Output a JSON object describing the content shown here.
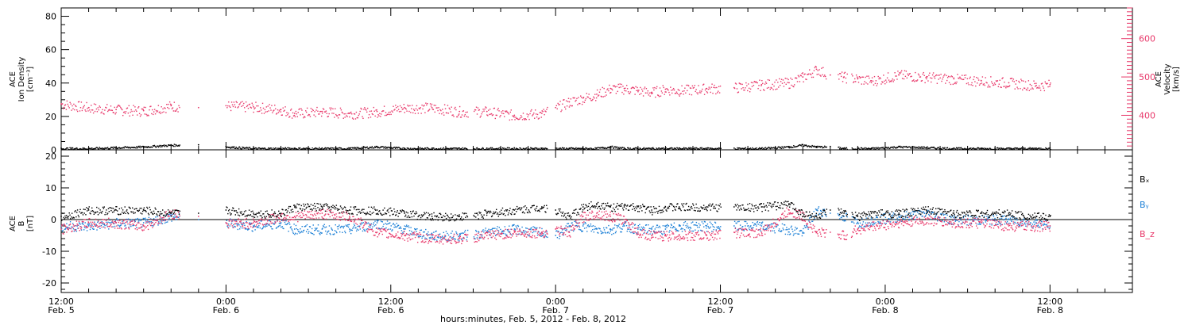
{
  "colors": {
    "velocity": "#e8386a",
    "density": "#000000",
    "bx": "#000000",
    "by": "#1a7fd6",
    "bz": "#e8386a",
    "axis": "#000000"
  },
  "xlabel": "hours:minutes, Feb.  5, 2012 - Feb.  8, 2012",
  "x_ticks": [
    {
      "hour": 0,
      "time": "12:00",
      "date": "Feb. 5"
    },
    {
      "hour": 12,
      "time": "0:00",
      "date": "Feb. 6"
    },
    {
      "hour": 24,
      "time": "12:00",
      "date": "Feb. 6"
    },
    {
      "hour": 36,
      "time": "0:00",
      "date": "Feb. 7"
    },
    {
      "hour": 48,
      "time": "12:00",
      "date": "Feb. 7"
    },
    {
      "hour": 60,
      "time": "0:00",
      "date": "Feb. 8"
    },
    {
      "hour": 72,
      "time": "12:00",
      "date": "Feb. 8"
    }
  ],
  "chart_data": [
    {
      "type": "scatter",
      "panel": "top",
      "xlim": [
        0,
        78
      ],
      "x_unit": "hours since Feb. 5 12:00",
      "ylabel_left": [
        "ACE",
        "Ion Density",
        "[cm⁻³]"
      ],
      "ylabel_right": [
        "ACE",
        "Velocity",
        "[km/s]"
      ],
      "ylim_left": [
        0,
        85
      ],
      "ylim_right": [
        310,
        680
      ],
      "left_ticks": [
        "0",
        "20",
        "40",
        "60",
        "80"
      ],
      "right_ticks": [
        "400",
        "500",
        "600"
      ],
      "series": [
        {
          "axis": "right",
          "x": [
            0,
            2,
            4,
            6,
            8,
            10,
            12,
            14,
            16,
            17,
            19,
            21,
            23,
            25,
            27,
            29,
            31,
            33,
            35,
            36,
            37,
            38,
            39,
            40,
            41,
            42,
            43,
            44,
            45,
            47,
            49,
            51,
            53,
            54,
            55,
            56,
            57,
            58,
            59,
            61,
            63,
            65,
            67,
            69,
            71,
            72
          ],
          "y": [
            430,
            420,
            415,
            412,
            425,
            420,
            425,
            422,
            415,
            405,
            410,
            405,
            410,
            420,
            420,
            410,
            410,
            400,
            405,
            420,
            435,
            445,
            455,
            470,
            470,
            465,
            460,
            468,
            465,
            470,
            472,
            480,
            485,
            500,
            520,
            505,
            500,
            495,
            490,
            505,
            500,
            495,
            490,
            485,
            478,
            480
          ]
        },
        {
          "axis": "left",
          "x": [
            0,
            2,
            4,
            6,
            8,
            10,
            12,
            14,
            16,
            17,
            19,
            21,
            23,
            25,
            27,
            29,
            31,
            33,
            35,
            36,
            37,
            38,
            39,
            40,
            41,
            42,
            43,
            44,
            45,
            47,
            49,
            51,
            53,
            54,
            55,
            56,
            57,
            58,
            59,
            61,
            63,
            65,
            67,
            69,
            71,
            72
          ],
          "y": [
            1,
            1,
            1.5,
            2,
            3,
            3,
            2,
            1,
            1,
            1,
            1,
            1,
            2,
            1,
            1,
            1,
            1,
            1,
            1,
            1,
            1,
            1,
            1,
            2,
            1,
            1,
            1,
            1,
            1,
            1,
            1,
            1,
            2,
            3,
            2,
            2,
            1,
            1,
            1,
            2,
            1.5,
            1,
            1,
            1,
            1,
            1
          ]
        }
      ]
    },
    {
      "type": "scatter",
      "panel": "bottom",
      "xlim": [
        0,
        78
      ],
      "x_unit": "hours since Feb. 5 12:00",
      "ylabel": [
        "ACE",
        "B",
        "[nT]"
      ],
      "ylim": [
        -23,
        22
      ],
      "y_ticks": [
        "-20",
        "-10",
        "0",
        "10",
        "20"
      ],
      "series": [
        {
          "name": "Bₓ",
          "x": [
            0,
            2,
            4,
            6,
            8,
            10,
            12,
            14,
            16,
            17,
            19,
            21,
            23,
            25,
            27,
            29,
            31,
            33,
            35,
            36,
            37,
            38,
            39,
            40,
            41,
            42,
            43,
            44,
            45,
            47,
            49,
            51,
            53,
            54,
            55,
            56,
            57,
            58,
            59,
            61,
            63,
            65,
            67,
            69,
            71,
            72
          ],
          "y": [
            1,
            3,
            3,
            3,
            2,
            2,
            3,
            2,
            2,
            4,
            4,
            3,
            3,
            2,
            1,
            1,
            2,
            3,
            4,
            3,
            1,
            4,
            5,
            4,
            4,
            4,
            3,
            4,
            4,
            4,
            4,
            4,
            5,
            2,
            1,
            3,
            2,
            1,
            2,
            2,
            3,
            2,
            2,
            2,
            1,
            1
          ]
        },
        {
          "name": "Bᵧ",
          "x": [
            0,
            2,
            4,
            6,
            8,
            10,
            12,
            14,
            16,
            17,
            19,
            21,
            23,
            25,
            27,
            29,
            31,
            33,
            35,
            36,
            37,
            38,
            39,
            40,
            41,
            42,
            43,
            44,
            45,
            47,
            49,
            51,
            53,
            54,
            55,
            56,
            57,
            58,
            59,
            61,
            63,
            65,
            67,
            69,
            71,
            72
          ],
          "y": [
            -2,
            -2,
            -1,
            -1,
            1,
            0,
            -1,
            -2,
            -1,
            -3,
            -3,
            -3,
            -1,
            -3,
            -5,
            -5,
            -4,
            -3,
            -4,
            -5,
            -2,
            -2,
            -3,
            -3,
            -2,
            -3,
            -3,
            -3,
            -2,
            -2,
            -2,
            -2,
            -3,
            -4,
            3,
            2,
            1,
            -1,
            0,
            1,
            2,
            0,
            0,
            0,
            -1,
            -2
          ]
        },
        {
          "name": "B_z",
          "x": [
            0,
            2,
            4,
            6,
            8,
            10,
            12,
            14,
            16,
            17,
            19,
            21,
            23,
            25,
            27,
            29,
            31,
            33,
            35,
            36,
            37,
            38,
            39,
            40,
            41,
            42,
            43,
            44,
            45,
            47,
            49,
            51,
            53,
            54,
            55,
            56,
            57,
            58,
            59,
            61,
            63,
            65,
            67,
            69,
            71,
            72
          ],
          "y": [
            -3,
            -1,
            -1,
            -2,
            2,
            1,
            -1,
            -1,
            1,
            1,
            2,
            1,
            -4,
            -5,
            -6,
            -6,
            -5,
            -4,
            -4,
            -3,
            -4,
            1,
            2,
            1,
            0,
            -4,
            -5,
            -5,
            -5,
            -5,
            -4,
            -4,
            3,
            1,
            -4,
            -4,
            -5,
            -3,
            -2,
            -1,
            0,
            -1,
            -1,
            -2,
            -2,
            -2
          ]
        }
      ],
      "legend": [
        "Bₓ",
        "Bᵧ",
        "B_z"
      ]
    }
  ]
}
